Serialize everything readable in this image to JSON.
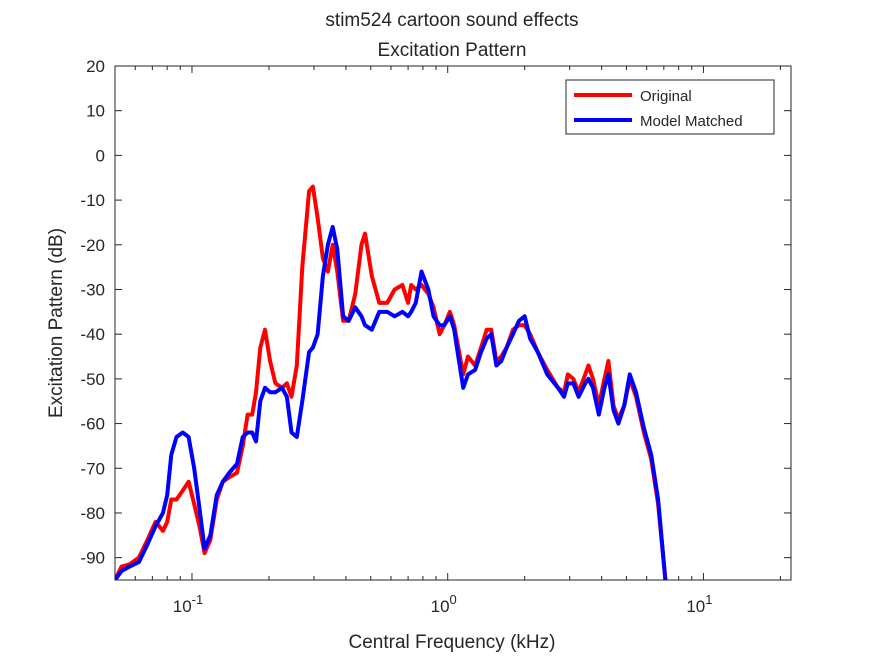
{
  "chart_data": {
    "type": "line",
    "title": "stim524 cartoon sound effects",
    "subtitle": "Excitation Pattern",
    "xlabel": "Central Frequency (kHz)",
    "ylabel": "Excitation Pattern (dB)",
    "xscale": "log",
    "xlim": [
      0.05,
      22
    ],
    "ylim": [
      -95,
      20
    ],
    "yticks": [
      20,
      10,
      0,
      -10,
      -20,
      -30,
      -40,
      -50,
      -60,
      -70,
      -80,
      -90
    ],
    "ytick_labels": [
      "20",
      "10",
      "0",
      "-10",
      "-20",
      "-30",
      "-40",
      "-50",
      "-60",
      "-70",
      "-80",
      "-90"
    ],
    "xticks": [
      0.1,
      1,
      10
    ],
    "xtick_labels": [
      {
        "base": "10",
        "exp": "-1"
      },
      {
        "base": "10",
        "exp": "0"
      },
      {
        "base": "10",
        "exp": "1"
      }
    ],
    "grid": false,
    "legend_position": "top-right",
    "series": [
      {
        "name": "Original",
        "color": "#ff0000",
        "points": [
          [
            0.05,
            -95
          ],
          [
            0.053,
            -92
          ],
          [
            0.057,
            -91.5
          ],
          [
            0.062,
            -90
          ],
          [
            0.067,
            -86
          ],
          [
            0.072,
            -82
          ],
          [
            0.077,
            -84
          ],
          [
            0.08,
            -82
          ],
          [
            0.083,
            -77
          ],
          [
            0.087,
            -77
          ],
          [
            0.092,
            -75
          ],
          [
            0.097,
            -73
          ],
          [
            0.102,
            -78
          ],
          [
            0.107,
            -83
          ],
          [
            0.112,
            -89
          ],
          [
            0.118,
            -86
          ],
          [
            0.125,
            -77
          ],
          [
            0.132,
            -73
          ],
          [
            0.14,
            -72
          ],
          [
            0.15,
            -71
          ],
          [
            0.158,
            -65
          ],
          [
            0.165,
            -58
          ],
          [
            0.172,
            -58
          ],
          [
            0.178,
            -53
          ],
          [
            0.185,
            -43
          ],
          [
            0.193,
            -39
          ],
          [
            0.202,
            -46
          ],
          [
            0.212,
            -51
          ],
          [
            0.225,
            -52
          ],
          [
            0.235,
            -51
          ],
          [
            0.245,
            -54
          ],
          [
            0.257,
            -47
          ],
          [
            0.27,
            -25
          ],
          [
            0.287,
            -8
          ],
          [
            0.297,
            -7
          ],
          [
            0.31,
            -14
          ],
          [
            0.325,
            -23
          ],
          [
            0.34,
            -26
          ],
          [
            0.355,
            -20
          ],
          [
            0.37,
            -26
          ],
          [
            0.39,
            -37
          ],
          [
            0.41,
            -37
          ],
          [
            0.435,
            -31
          ],
          [
            0.46,
            -20
          ],
          [
            0.475,
            -17.5
          ],
          [
            0.505,
            -27
          ],
          [
            0.54,
            -33
          ],
          [
            0.58,
            -33
          ],
          [
            0.62,
            -30
          ],
          [
            0.665,
            -29
          ],
          [
            0.7,
            -33
          ],
          [
            0.72,
            -29
          ],
          [
            0.75,
            -30
          ],
          [
            0.79,
            -29
          ],
          [
            0.84,
            -31
          ],
          [
            0.88,
            -34
          ],
          [
            0.93,
            -40
          ],
          [
            0.97,
            -38
          ],
          [
            1.02,
            -35
          ],
          [
            1.06,
            -38
          ],
          [
            1.1,
            -43
          ],
          [
            1.15,
            -49
          ],
          [
            1.2,
            -45
          ],
          [
            1.28,
            -47
          ],
          [
            1.35,
            -43
          ],
          [
            1.42,
            -39
          ],
          [
            1.48,
            -39
          ],
          [
            1.55,
            -46
          ],
          [
            1.62,
            -45
          ],
          [
            1.7,
            -43
          ],
          [
            1.8,
            -39
          ],
          [
            1.9,
            -38
          ],
          [
            2.0,
            -38
          ],
          [
            2.1,
            -40
          ],
          [
            2.25,
            -44
          ],
          [
            2.45,
            -48
          ],
          [
            2.7,
            -52
          ],
          [
            2.85,
            -53
          ],
          [
            2.95,
            -49
          ],
          [
            3.1,
            -50
          ],
          [
            3.25,
            -53
          ],
          [
            3.45,
            -49
          ],
          [
            3.55,
            -47
          ],
          [
            3.7,
            -50
          ],
          [
            3.9,
            -56
          ],
          [
            4.1,
            -50
          ],
          [
            4.25,
            -46
          ],
          [
            4.45,
            -56
          ],
          [
            4.65,
            -59
          ],
          [
            4.9,
            -56
          ],
          [
            5.15,
            -50
          ],
          [
            5.45,
            -54
          ],
          [
            5.85,
            -62
          ],
          [
            6.25,
            -68
          ],
          [
            6.65,
            -78
          ],
          [
            7.1,
            -95
          ]
        ]
      },
      {
        "name": "Model Matched",
        "color": "#0000ff",
        "points": [
          [
            0.05,
            -95
          ],
          [
            0.053,
            -93
          ],
          [
            0.057,
            -92
          ],
          [
            0.062,
            -91
          ],
          [
            0.067,
            -87
          ],
          [
            0.072,
            -83
          ],
          [
            0.077,
            -80
          ],
          [
            0.08,
            -76
          ],
          [
            0.083,
            -67
          ],
          [
            0.087,
            -63
          ],
          [
            0.092,
            -62
          ],
          [
            0.097,
            -63
          ],
          [
            0.102,
            -70
          ],
          [
            0.107,
            -79
          ],
          [
            0.112,
            -88
          ],
          [
            0.118,
            -85
          ],
          [
            0.125,
            -76
          ],
          [
            0.132,
            -73
          ],
          [
            0.14,
            -71
          ],
          [
            0.15,
            -69
          ],
          [
            0.158,
            -63
          ],
          [
            0.165,
            -62
          ],
          [
            0.172,
            -62
          ],
          [
            0.178,
            -64
          ],
          [
            0.185,
            -55
          ],
          [
            0.193,
            -52
          ],
          [
            0.202,
            -53
          ],
          [
            0.212,
            -53
          ],
          [
            0.225,
            -52
          ],
          [
            0.235,
            -54
          ],
          [
            0.245,
            -62
          ],
          [
            0.257,
            -63
          ],
          [
            0.27,
            -55
          ],
          [
            0.287,
            -44
          ],
          [
            0.297,
            -43
          ],
          [
            0.31,
            -40
          ],
          [
            0.325,
            -27
          ],
          [
            0.34,
            -20
          ],
          [
            0.355,
            -16
          ],
          [
            0.37,
            -21
          ],
          [
            0.39,
            -36
          ],
          [
            0.41,
            -37
          ],
          [
            0.435,
            -34
          ],
          [
            0.46,
            -36
          ],
          [
            0.475,
            -38
          ],
          [
            0.505,
            -39
          ],
          [
            0.54,
            -35
          ],
          [
            0.58,
            -35
          ],
          [
            0.62,
            -36
          ],
          [
            0.665,
            -35
          ],
          [
            0.7,
            -36
          ],
          [
            0.72,
            -35
          ],
          [
            0.75,
            -33
          ],
          [
            0.79,
            -26
          ],
          [
            0.84,
            -30
          ],
          [
            0.88,
            -36
          ],
          [
            0.93,
            -38
          ],
          [
            0.97,
            -38
          ],
          [
            1.02,
            -36
          ],
          [
            1.06,
            -39
          ],
          [
            1.1,
            -45
          ],
          [
            1.15,
            -52
          ],
          [
            1.2,
            -49
          ],
          [
            1.28,
            -48
          ],
          [
            1.35,
            -44
          ],
          [
            1.42,
            -41
          ],
          [
            1.48,
            -40
          ],
          [
            1.55,
            -47
          ],
          [
            1.62,
            -46
          ],
          [
            1.7,
            -43
          ],
          [
            1.8,
            -40
          ],
          [
            1.9,
            -37
          ],
          [
            2.0,
            -36
          ],
          [
            2.1,
            -41
          ],
          [
            2.25,
            -44
          ],
          [
            2.45,
            -49
          ],
          [
            2.7,
            -52
          ],
          [
            2.85,
            -54
          ],
          [
            2.95,
            -51
          ],
          [
            3.1,
            -51
          ],
          [
            3.25,
            -54
          ],
          [
            3.45,
            -51
          ],
          [
            3.55,
            -50
          ],
          [
            3.7,
            -52
          ],
          [
            3.9,
            -58
          ],
          [
            4.1,
            -52
          ],
          [
            4.25,
            -49
          ],
          [
            4.45,
            -57
          ],
          [
            4.65,
            -60
          ],
          [
            4.9,
            -56
          ],
          [
            5.15,
            -49
          ],
          [
            5.45,
            -53
          ],
          [
            5.85,
            -61
          ],
          [
            6.25,
            -67
          ],
          [
            6.65,
            -77
          ],
          [
            7.1,
            -95
          ]
        ]
      }
    ]
  }
}
